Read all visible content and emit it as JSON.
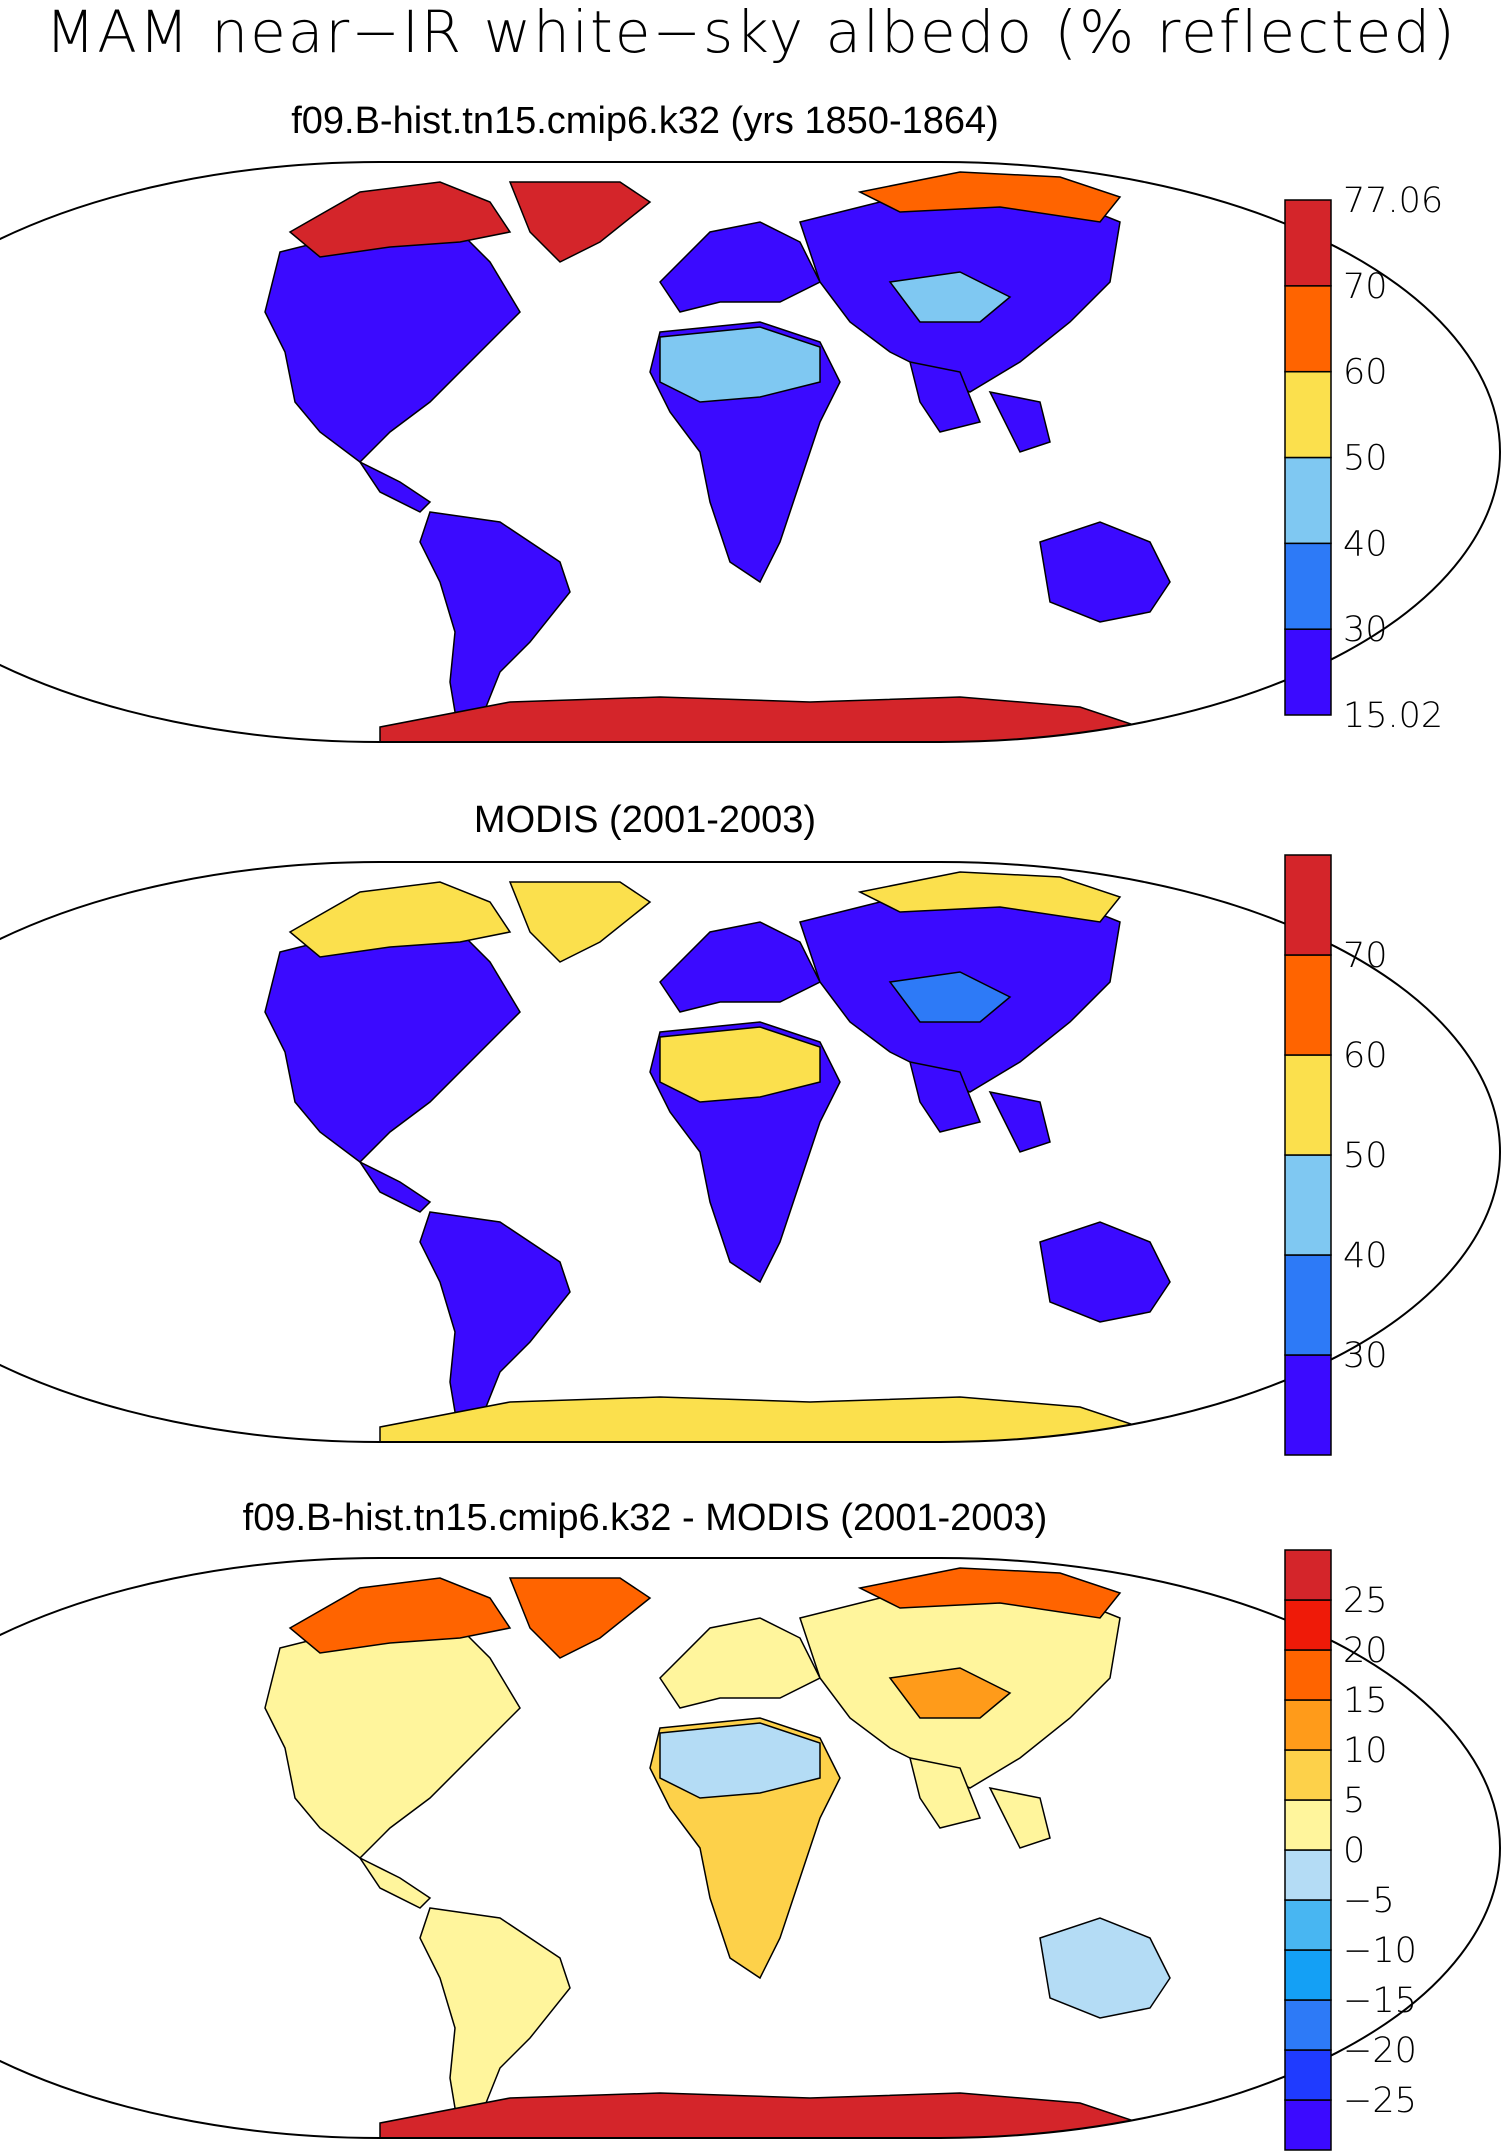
{
  "title": "MAM near−IR white−sky albedo (% reflected)",
  "colors": {
    "ocean": "#ffffff",
    "coast": "#000000"
  },
  "panels": [
    {
      "id": "model",
      "subtitle": "f09.B-hist.tn15.cmip6.k32 (yrs 1850-1864)",
      "colorbar": {
        "colors": [
          "#3b0aff",
          "#2d7af7",
          "#7fc8f2",
          "#fbe04d",
          "#ff6400",
          "#d4252a"
        ],
        "labels": [
          "15.02",
          "30",
          "40",
          "50",
          "60",
          "70",
          "77.06"
        ]
      },
      "regions": {
        "north_america": "#3b0aff",
        "arctic_canada": "#d4252a",
        "greenland": "#d4252a",
        "south_america": "#3b0aff",
        "africa": "#3b0aff",
        "sahara": "#7fc8f2",
        "europe": "#3b0aff",
        "asia": "#3b0aff",
        "tibet": "#7fc8f2",
        "siberia_north": "#ff6400",
        "australia": "#3b0aff",
        "antarctica": "#d4252a"
      }
    },
    {
      "id": "obs",
      "subtitle": "MODIS (2001-2003)",
      "colorbar": {
        "colors": [
          "#3b0aff",
          "#2d7af7",
          "#7fc8f2",
          "#fbe04d",
          "#ff6400",
          "#d4252a"
        ],
        "labels": [
          "",
          "30",
          "40",
          "50",
          "60",
          "70",
          ""
        ]
      },
      "regions": {
        "north_america": "#3b0aff",
        "arctic_canada": "#fbe04d",
        "greenland": "#fbe04d",
        "south_america": "#3b0aff",
        "africa": "#3b0aff",
        "sahara": "#fbe04d",
        "europe": "#3b0aff",
        "asia": "#3b0aff",
        "tibet": "#2d7af7",
        "siberia_north": "#fbe04d",
        "australia": "#3b0aff",
        "antarctica": "#fbe04d"
      }
    },
    {
      "id": "diff",
      "subtitle": "f09.B-hist.tn15.cmip6.k32 - MODIS (2001-2003)",
      "colorbar": {
        "colors": [
          "#3b0aff",
          "#1f3bff",
          "#2d7af7",
          "#14a0f5",
          "#48b6f2",
          "#b4dcf5",
          "#fff59c",
          "#fdd14a",
          "#ff9b1a",
          "#ff6400",
          "#ef1a08",
          "#d4252a"
        ],
        "labels": [
          "",
          "−25",
          "−20",
          "−15",
          "−10",
          "−5",
          "0",
          "5",
          "10",
          "15",
          "20",
          "25",
          ""
        ]
      },
      "regions": {
        "north_america": "#fff59c",
        "arctic_canada": "#ff6400",
        "greenland": "#ff6400",
        "south_america": "#fff59c",
        "africa": "#fdd14a",
        "sahara": "#b4dcf5",
        "europe": "#fff59c",
        "asia": "#fff59c",
        "tibet": "#ff9b1a",
        "siberia_north": "#ff6400",
        "australia": "#b4dcf5",
        "antarctica": "#d4252a"
      }
    }
  ]
}
